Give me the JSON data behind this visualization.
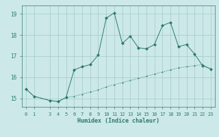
{
  "xlabel": "Humidex (Indice chaleur)",
  "ylabel": "",
  "background_color": "#cce8e8",
  "grid_color": "#aacece",
  "line_color": "#2a7a6a",
  "xlim": [
    -0.5,
    23.5
  ],
  "ylim": [
    14.6,
    19.4
  ],
  "yticks": [
    15,
    16,
    17,
    18,
    19
  ],
  "xticks": [
    0,
    1,
    3,
    4,
    5,
    6,
    7,
    8,
    9,
    10,
    11,
    12,
    13,
    14,
    15,
    16,
    17,
    18,
    19,
    20,
    21,
    22,
    23
  ],
  "line1_x": [
    0,
    1,
    3,
    4,
    5,
    6,
    7,
    8,
    9,
    10,
    11,
    12,
    13,
    14,
    15,
    16,
    17,
    18,
    19,
    20,
    21,
    22,
    23
  ],
  "line1_y": [
    15.45,
    15.1,
    14.9,
    14.85,
    15.05,
    15.1,
    15.2,
    15.3,
    15.4,
    15.55,
    15.65,
    15.75,
    15.85,
    15.95,
    16.05,
    16.15,
    16.25,
    16.35,
    16.45,
    16.5,
    16.55,
    16.6,
    16.4
  ],
  "line2_x": [
    0,
    1,
    3,
    4,
    5,
    6,
    7,
    8,
    9,
    10,
    11,
    12,
    13,
    14,
    15,
    16,
    17,
    18,
    19,
    20,
    21,
    22,
    23
  ],
  "line2_y": [
    15.45,
    15.1,
    14.9,
    14.85,
    15.05,
    16.35,
    16.5,
    16.6,
    17.05,
    18.8,
    19.05,
    17.6,
    17.95,
    17.4,
    17.35,
    17.55,
    18.45,
    18.6,
    17.45,
    17.55,
    17.1,
    16.55,
    16.4
  ]
}
